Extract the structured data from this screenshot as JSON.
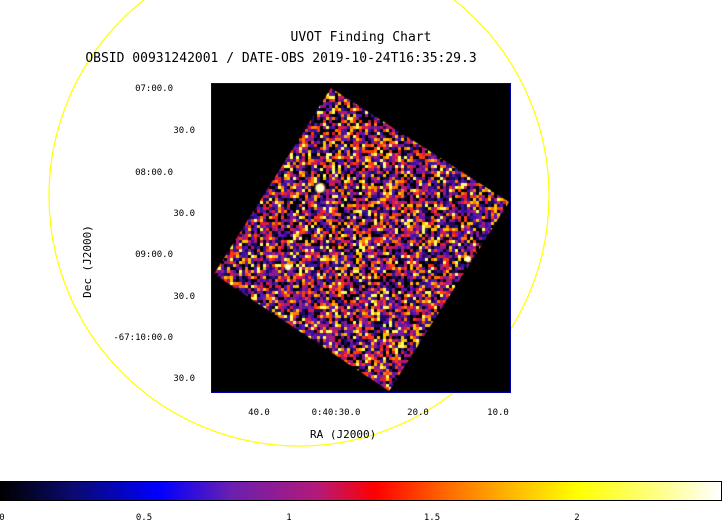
{
  "title": "UVOT Finding Chart",
  "subtitle": "OBSID 00931242001 / DATE-OBS 2019-10-24T16:35:29.3",
  "axes": {
    "xlabel": "RA (J2000)",
    "ylabel": "Dec (J2000)",
    "dec_ticks": [
      "07:00.0",
      "30.0",
      "08:00.0",
      "30.0",
      "09:00.0",
      "30.0",
      "-67:10:00.0",
      "30.0"
    ],
    "ra_ticks": [
      "40.0",
      "0:40:30.0",
      "20.0",
      "10.0"
    ]
  },
  "colorbar": {
    "ticks": [
      "0",
      "0.5",
      "1",
      "1.5",
      "2"
    ]
  },
  "colors": {
    "circle": "#ffff00",
    "frame_border": "#0000aa",
    "image_bg": "#000000"
  }
}
